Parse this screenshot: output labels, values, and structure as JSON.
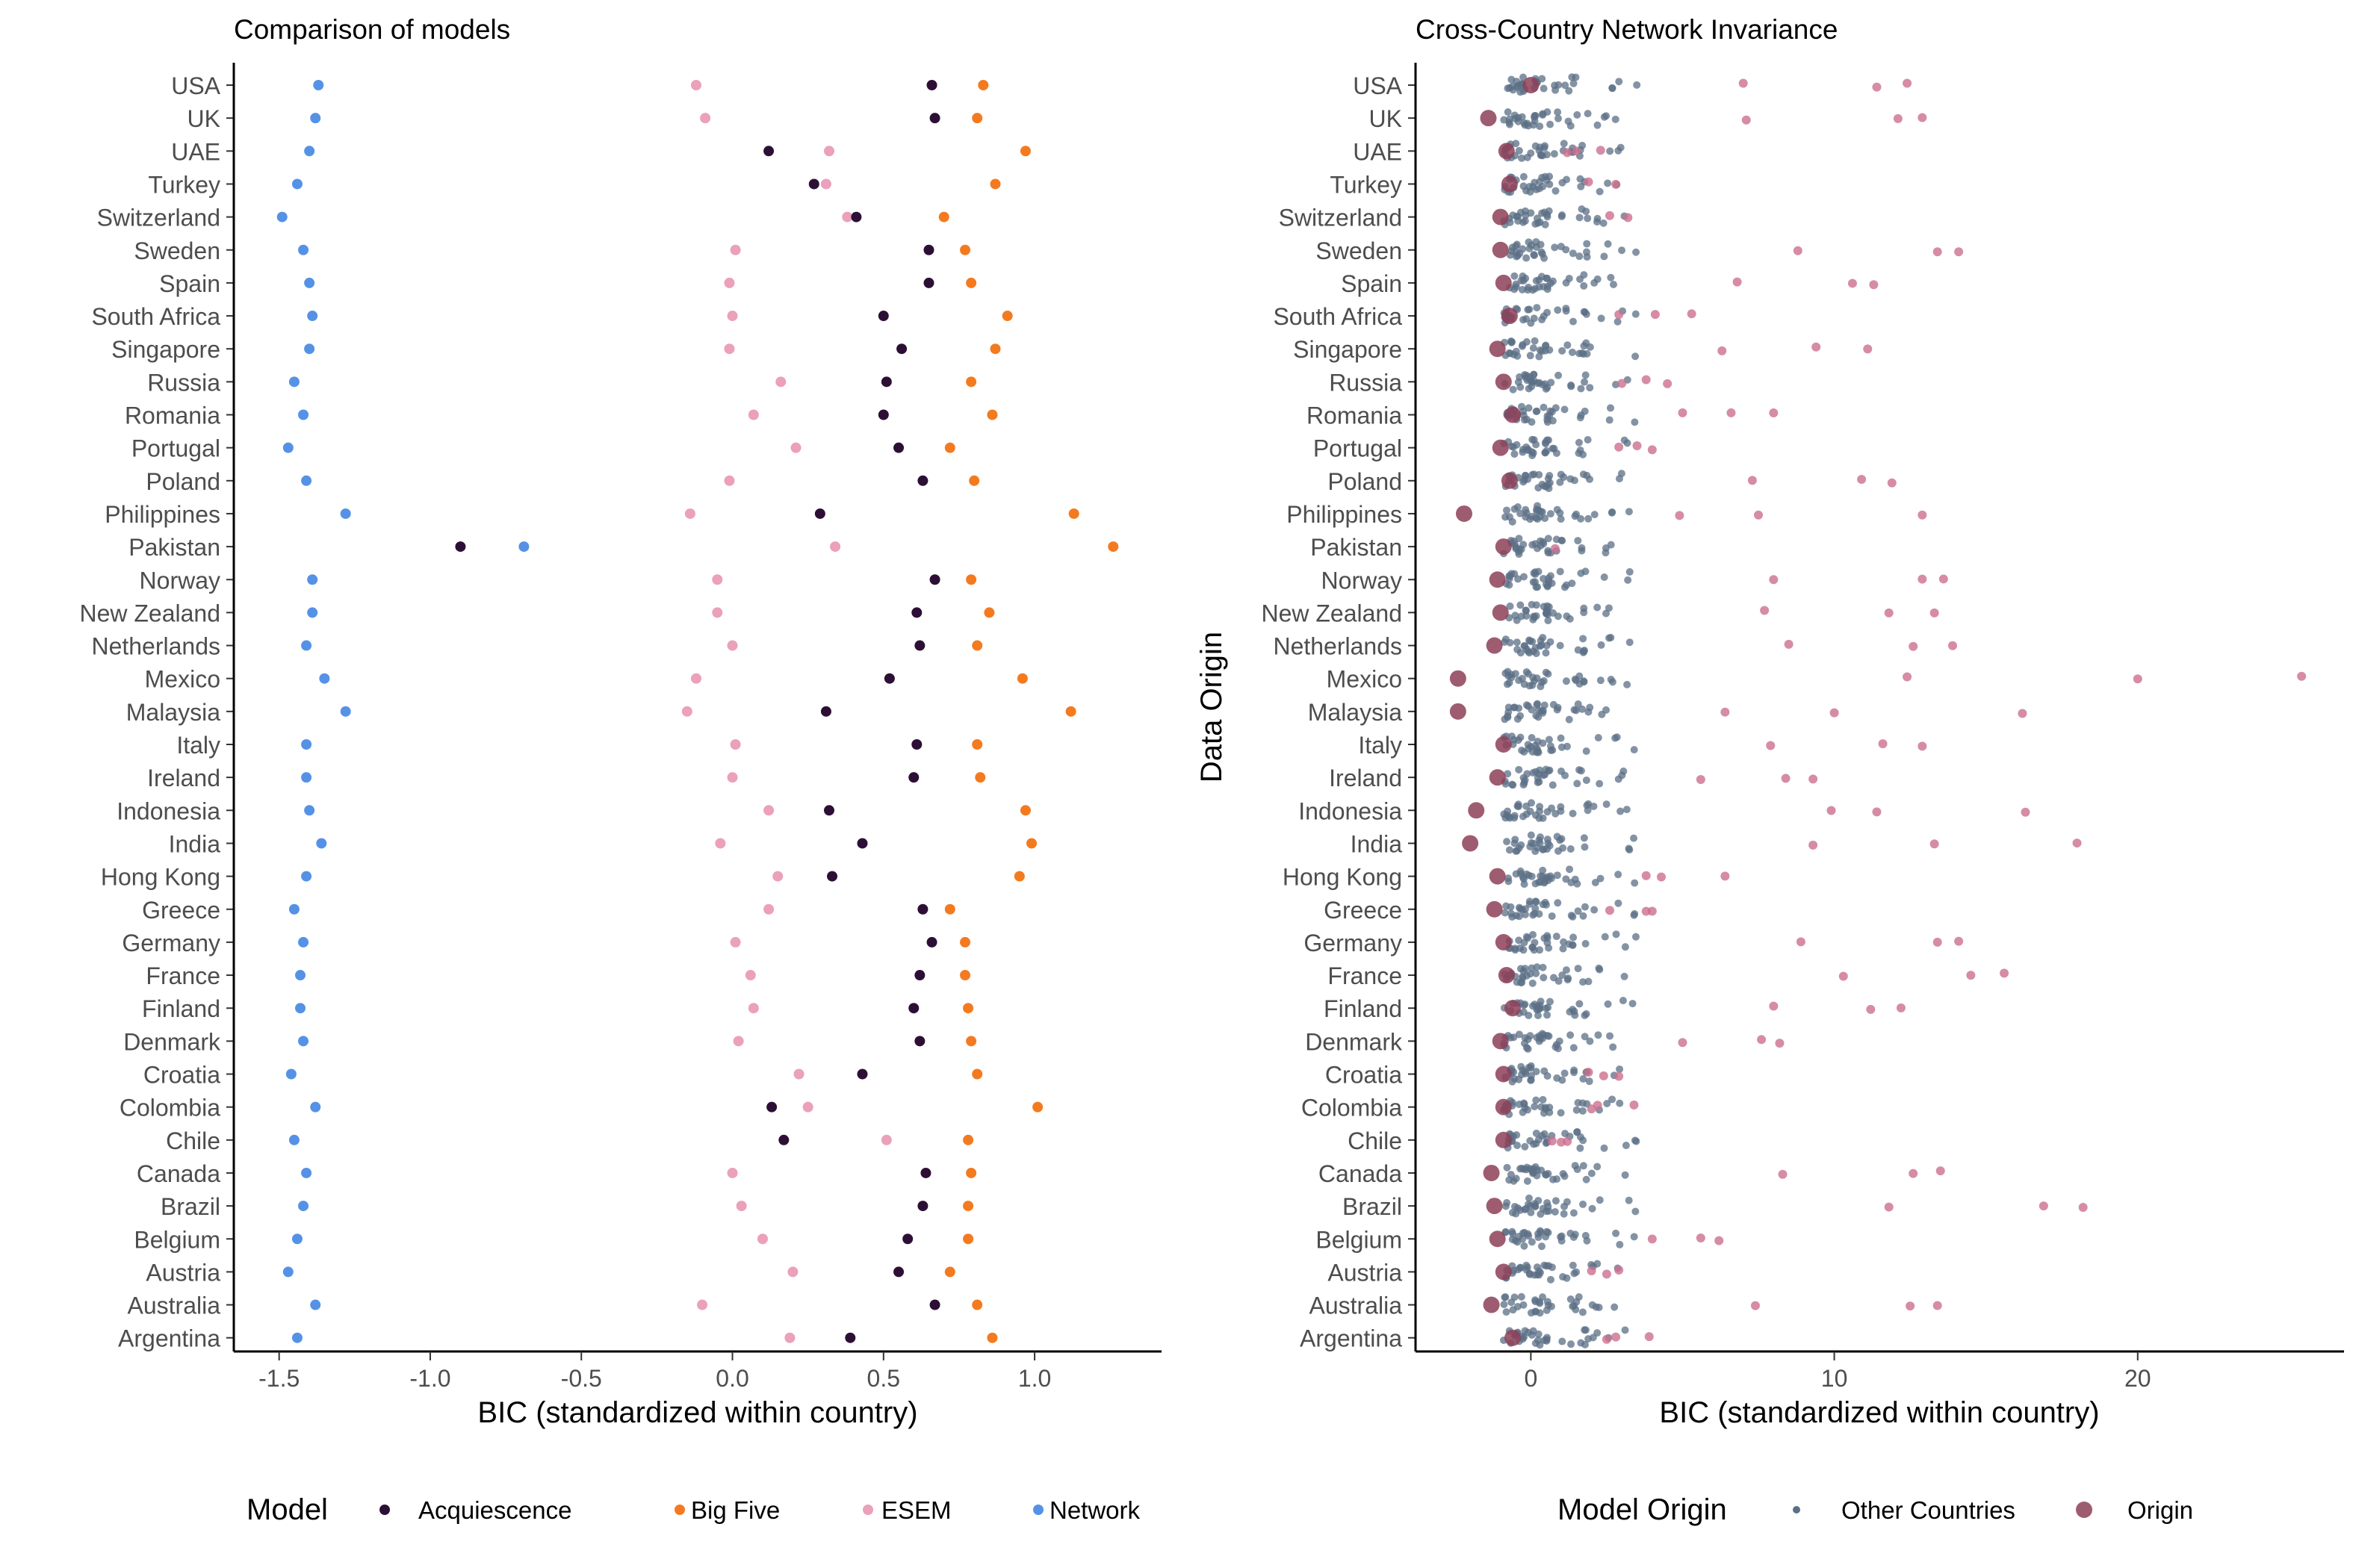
{
  "colors": {
    "acquiescence": "#2d0f36",
    "big_five": "#f47a20",
    "esem": "#eba0bb",
    "network": "#5592e6",
    "other_countries": "#5b6f86",
    "origin": "#8d3f58",
    "origin_extra": "#cc6f8f",
    "axis": "#000000",
    "tick_text": "#4d4d4d",
    "title_text": "#000000"
  },
  "countries": [
    "USA",
    "UK",
    "UAE",
    "Turkey",
    "Switzerland",
    "Sweden",
    "Spain",
    "South Africa",
    "Singapore",
    "Russia",
    "Romania",
    "Portugal",
    "Poland",
    "Philippines",
    "Pakistan",
    "Norway",
    "New Zealand",
    "Netherlands",
    "Mexico",
    "Malaysia",
    "Italy",
    "Ireland",
    "Indonesia",
    "India",
    "Hong Kong",
    "Greece",
    "Germany",
    "France",
    "Finland",
    "Denmark",
    "Croatia",
    "Colombia",
    "Chile",
    "Canada",
    "Brazil",
    "Belgium",
    "Austria",
    "Australia",
    "Argentina"
  ],
  "chart_data": [
    {
      "type": "scatter",
      "title": "Comparison of models",
      "xlabel": "BIC (standardized within country)",
      "ylabel": "",
      "xlim": [
        -1.65,
        1.42
      ],
      "xticks": [
        -1.5,
        -1.0,
        -0.5,
        0.0,
        0.5,
        1.0
      ],
      "xtick_labels": [
        "-1.5",
        "-1.0",
        "-0.5",
        "0.0",
        "0.5",
        "1.0"
      ],
      "grid": false,
      "legend": {
        "title": "Model",
        "placement": "bottom",
        "entries": [
          "Acquiescence",
          "Big Five",
          "ESEM",
          "Network"
        ]
      },
      "series": [
        {
          "name": "Acquiescence",
          "key": "acquiescence",
          "values": [
            0.66,
            0.67,
            0.12,
            0.27,
            0.41,
            0.65,
            0.65,
            0.5,
            0.56,
            0.51,
            0.5,
            0.55,
            0.63,
            0.29,
            -0.9,
            0.67,
            0.61,
            0.62,
            0.52,
            0.31,
            0.61,
            0.6,
            0.32,
            0.43,
            0.33,
            0.63,
            0.66,
            0.62,
            0.6,
            0.62,
            0.43,
            0.13,
            0.17,
            0.64,
            0.63,
            0.58,
            0.55,
            0.67,
            0.39
          ]
        },
        {
          "name": "Big Five",
          "key": "big_five",
          "values": [
            0.83,
            0.81,
            0.97,
            0.87,
            0.7,
            0.77,
            0.79,
            0.91,
            0.87,
            0.79,
            0.86,
            0.72,
            0.8,
            1.13,
            1.26,
            0.79,
            0.85,
            0.81,
            0.96,
            1.12,
            0.81,
            0.82,
            0.97,
            0.99,
            0.95,
            0.72,
            0.77,
            0.77,
            0.78,
            0.79,
            0.81,
            1.01,
            0.78,
            0.79,
            0.78,
            0.78,
            0.72,
            0.81,
            0.86
          ]
        },
        {
          "name": "ESEM",
          "key": "esem",
          "values": [
            -0.12,
            -0.09,
            0.32,
            0.31,
            0.38,
            0.01,
            -0.01,
            0.0,
            -0.01,
            0.16,
            0.07,
            0.21,
            -0.01,
            -0.14,
            0.34,
            -0.05,
            -0.05,
            0.0,
            -0.12,
            -0.15,
            0.01,
            0.0,
            0.12,
            -0.04,
            0.15,
            0.12,
            0.01,
            0.06,
            0.07,
            0.02,
            0.22,
            0.25,
            0.51,
            0.0,
            0.03,
            0.1,
            0.2,
            -0.1,
            0.19
          ]
        },
        {
          "name": "Network",
          "key": "network",
          "values": [
            -1.37,
            -1.38,
            -1.4,
            -1.44,
            -1.49,
            -1.42,
            -1.4,
            -1.39,
            -1.4,
            -1.45,
            -1.42,
            -1.47,
            -1.41,
            -1.28,
            -0.69,
            -1.39,
            -1.39,
            -1.41,
            -1.35,
            -1.28,
            -1.41,
            -1.41,
            -1.4,
            -1.36,
            -1.41,
            -1.45,
            -1.42,
            -1.43,
            -1.43,
            -1.42,
            -1.46,
            -1.38,
            -1.45,
            -1.41,
            -1.42,
            -1.44,
            -1.47,
            -1.38,
            -1.44
          ]
        }
      ]
    },
    {
      "type": "scatter",
      "title": "Cross-Country Network Invariance",
      "xlabel": "BIC (standardized within country)",
      "ylabel": "Data Origin",
      "xlim": [
        -3.8,
        26.8
      ],
      "xticks": [
        0,
        10,
        20
      ],
      "xtick_labels": [
        "0",
        "10",
        "20"
      ],
      "grid": false,
      "legend": {
        "title": "Model Origin",
        "placement": "bottom",
        "entries": [
          "Other Countries",
          "Origin"
        ]
      },
      "origin_values": [
        0.0,
        -1.4,
        -0.8,
        -0.7,
        -1.0,
        -1.0,
        -0.9,
        -0.7,
        -1.1,
        -0.9,
        -0.6,
        -1.0,
        -0.7,
        -2.2,
        -0.9,
        -1.1,
        -1.0,
        -1.2,
        -2.4,
        -2.4,
        -0.9,
        -1.1,
        -1.8,
        -2.0,
        -1.1,
        -1.2,
        -0.9,
        -0.8,
        -0.6,
        -1.0,
        -0.9,
        -0.9,
        -0.9,
        -1.3,
        -1.2,
        -1.1,
        -0.9,
        -1.3,
        -0.6
      ],
      "outlier_values": [
        [
          7.0,
          11.4,
          12.4
        ],
        [
          7.1,
          12.1,
          12.9
        ],
        [
          1.2,
          1.5,
          2.3
        ],
        [
          1.9,
          2.8
        ],
        [
          2.6,
          3.2
        ],
        [
          8.8,
          13.4,
          14.1
        ],
        [
          6.8,
          10.6,
          11.3
        ],
        [
          2.9,
          4.1,
          5.3
        ],
        [
          6.3,
          9.4,
          11.1
        ],
        [
          3.0,
          3.8,
          4.5
        ],
        [
          5.0,
          6.6,
          8.0
        ],
        [
          2.9,
          3.5,
          4.0
        ],
        [
          7.3,
          10.9,
          11.9
        ],
        [
          4.9,
          7.5,
          12.9
        ],
        [
          0.8
        ],
        [
          8.0,
          12.9,
          13.6
        ],
        [
          7.7,
          11.8,
          13.3
        ],
        [
          8.5,
          12.6,
          13.9
        ],
        [
          12.4,
          20.0,
          25.4
        ],
        [
          6.4,
          10.0,
          16.2
        ],
        [
          7.9,
          11.6,
          12.9
        ],
        [
          5.6,
          8.4,
          9.3
        ],
        [
          9.9,
          11.4,
          16.3
        ],
        [
          9.3,
          13.3,
          18.0
        ],
        [
          3.8,
          4.3,
          6.4
        ],
        [
          2.6,
          3.8,
          4.0
        ],
        [
          8.9,
          13.4,
          14.1
        ],
        [
          10.3,
          14.5,
          15.6
        ],
        [
          8.0,
          11.2,
          12.2
        ],
        [
          5.0,
          7.6,
          8.2
        ],
        [
          1.9,
          2.4,
          2.9
        ],
        [
          2.0,
          2.2,
          3.4
        ],
        [
          0.7,
          1.0,
          1.2
        ],
        [
          8.3,
          12.6,
          13.5
        ],
        [
          11.8,
          16.9,
          18.2
        ],
        [
          4.0,
          5.6,
          6.2
        ],
        [
          2.0,
          2.5,
          2.9
        ],
        [
          7.4,
          12.5,
          13.4
        ],
        [
          2.5,
          2.8,
          3.9
        ]
      ],
      "other_countries_spread": [
        -1.5,
        3.5
      ]
    }
  ]
}
